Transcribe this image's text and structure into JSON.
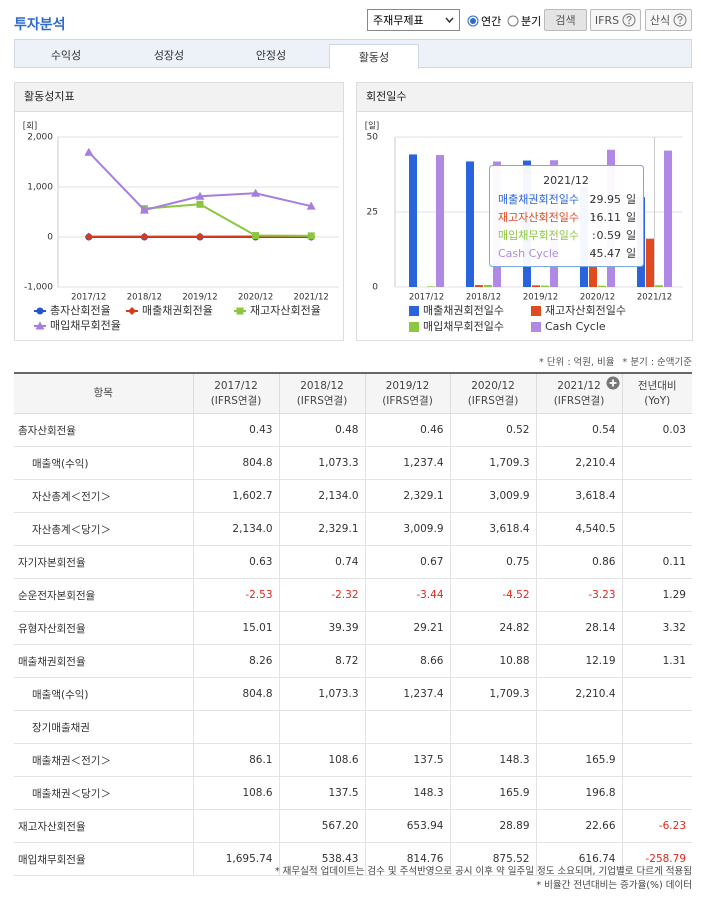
{
  "header": {
    "title": "투자분석",
    "select": "주재무제표",
    "radios": [
      "연간",
      "분기"
    ],
    "buttons": [
      "검색",
      "IFRS",
      "산식"
    ]
  },
  "tabs": [
    "수익성",
    "성장성",
    "안정성",
    "활동성"
  ],
  "chart_data": [
    {
      "type": "line",
      "title": "활동성지표",
      "ylabel": "[회]",
      "categories": [
        "2017/12",
        "2018/12",
        "2019/12",
        "2020/12",
        "2021/12"
      ],
      "ylim": [
        -1000,
        2000
      ],
      "yticks": [
        {
          "value": 2000,
          "label": "2,000"
        },
        {
          "value": 1000,
          "label": "1,000"
        },
        0,
        {
          "value": -1000,
          "label": "-1,000"
        }
      ],
      "grid": true,
      "series": [
        {
          "name": "총자산회전율",
          "color": "#2456cf",
          "marker": "circle",
          "values": [
            0.43,
            0.48,
            0.46,
            0.52,
            0.54
          ]
        },
        {
          "name": "매출채권회전율",
          "color": "#d63c1c",
          "marker": "diamond",
          "values": [
            8.26,
            8.72,
            8.66,
            10.88,
            12.19
          ]
        },
        {
          "name": "재고자산회전율",
          "color": "#8cc63e",
          "marker": "square",
          "values": [
            null,
            567.2,
            653.94,
            28.89,
            22.66
          ]
        },
        {
          "name": "매입채무회전율",
          "color": "#a67ee0",
          "marker": "triangle",
          "values": [
            1695.74,
            538.43,
            814.76,
            875.52,
            616.74
          ]
        }
      ]
    },
    {
      "type": "bar",
      "title": "회전일수",
      "ylabel": "[일]",
      "categories": [
        "2017/12",
        "2018/12",
        "2019/12",
        "2020/12",
        "2021/12"
      ],
      "ylim": [
        0,
        50
      ],
      "yticks": [
        0,
        25,
        50
      ],
      "grid": true,
      "series": [
        {
          "name": "매출채권회전일수",
          "color": "#2a64dc",
          "values": [
            44.19,
            41.86,
            42.15,
            33.55,
            29.95
          ]
        },
        {
          "name": "재고자산회전일수",
          "color": "#e04a1f",
          "values": [
            null,
            0.64,
            0.56,
            12.63,
            16.11
          ]
        },
        {
          "name": "매입채무회전일수",
          "color": "#8dc63f",
          "values": [
            0.22,
            0.68,
            0.45,
            0.42,
            0.59
          ]
        },
        {
          "name": "Cash Cycle",
          "color": "#b089e4",
          "values": [
            43.97,
            41.82,
            42.26,
            45.76,
            45.47
          ]
        }
      ],
      "tooltip": {
        "separator": ":",
        "unit": "일"
      }
    }
  ],
  "notes": [
    "* 단위 : 억원, 비율",
    "* 분기 : 순액기준"
  ],
  "table": {
    "columns": [
      [
        "항목"
      ],
      [
        "2017/12",
        "(IFRS연결)"
      ],
      [
        "2018/12",
        "(IFRS연결)"
      ],
      [
        "2019/12",
        "(IFRS연결)"
      ],
      [
        "2020/12",
        "(IFRS연결)"
      ],
      [
        "2021/12",
        "(IFRS연결)"
      ],
      [
        "전년대비",
        "(YoY)"
      ]
    ],
    "rows": [
      {
        "label": "총자산회전율",
        "toggle": "minus",
        "cells": [
          "0.43",
          "0.48",
          "0.46",
          "0.52",
          "0.54",
          "0.03"
        ]
      },
      {
        "label": "매출액(수익)",
        "cells": [
          "804.8",
          "1,073.3",
          "1,237.4",
          "1,709.3",
          "2,210.4",
          null
        ]
      },
      {
        "label": "자산총계＜전기＞",
        "cells": [
          "1,602.7",
          "2,134.0",
          "2,329.1",
          "3,009.9",
          "3,618.4",
          null
        ]
      },
      {
        "label": "자산총계＜당기＞",
        "cells": [
          "2,134.0",
          "2,329.1",
          "3,009.9",
          "3,618.4",
          "4,540.5",
          null
        ]
      },
      {
        "label": "자기자본회전율",
        "toggle": "plus",
        "cells": [
          "0.63",
          "0.74",
          "0.67",
          "0.75",
          "0.86",
          "0.11"
        ]
      },
      {
        "label": "순운전자본회전율",
        "toggle": "plus",
        "cells": [
          "-2.53",
          "-2.32",
          "-3.44",
          "-4.52",
          "-3.23",
          "1.29"
        ]
      },
      {
        "label": "유형자산회전율",
        "toggle": "plus",
        "cells": [
          "15.01",
          "39.39",
          "29.21",
          "24.82",
          "28.14",
          "3.32"
        ]
      },
      {
        "label": "매출채권회전율",
        "toggle": "minus",
        "cells": [
          "8.26",
          "8.72",
          "8.66",
          "10.88",
          "12.19",
          "1.31"
        ]
      },
      {
        "label": "매출액(수익)",
        "cells": [
          "804.8",
          "1,073.3",
          "1,237.4",
          "1,709.3",
          "2,210.4",
          null
        ]
      },
      {
        "label": "장기매출채권",
        "cells": [
          null,
          null,
          null,
          null,
          null,
          null
        ]
      },
      {
        "label": "매출채권＜전기＞",
        "cells": [
          "86.1",
          "108.6",
          "137.5",
          "148.3",
          "165.9",
          null
        ]
      },
      {
        "label": "매출채권＜당기＞",
        "cells": [
          "108.6",
          "137.5",
          "148.3",
          "165.9",
          "196.8",
          null
        ]
      },
      {
        "label": "재고자산회전율",
        "toggle": "plus",
        "cells": [
          null,
          "567.20",
          "653.94",
          "28.89",
          "22.66",
          "-6.23"
        ]
      },
      {
        "label": "매입채무회전율",
        "toggle": "plus",
        "cells": [
          "1,695.74",
          "538.43",
          "814.76",
          "875.52",
          "616.74",
          "-258.79"
        ]
      }
    ]
  },
  "footer": [
    "* 재무실적 업데이트는 검수 및 주석반영으로 공시 이후 약 일주일 정도 소요되며, 기업별로 다르게 적용됨",
    "* 비율간 전년대비는 증가율(%) 데이터"
  ]
}
